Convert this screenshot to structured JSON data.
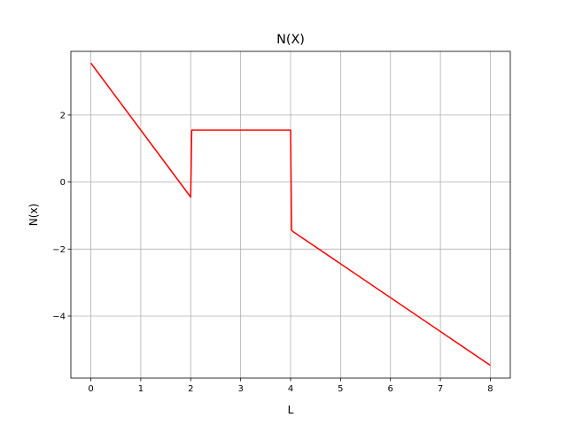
{
  "chart_data": {
    "type": "line",
    "title": "N(X)",
    "xlabel": "L",
    "ylabel": "N(x)",
    "xlim": [
      -0.4,
      8.4
    ],
    "ylim": [
      -5.85,
      3.9
    ],
    "xticks": [
      0,
      1,
      2,
      3,
      4,
      5,
      6,
      7,
      8
    ],
    "yticks": [
      -4,
      -2,
      0,
      2
    ],
    "ytick_labels": [
      "−4",
      "−2",
      "0",
      "2"
    ],
    "grid": true,
    "colors": {
      "line": "#ff0000",
      "grid": "#b0b0b0",
      "axes": "#000000"
    },
    "series": [
      {
        "x": [
          0,
          2.0,
          2.02,
          2.04,
          4.0,
          4.02,
          4.04,
          8
        ],
        "y": [
          3.55,
          -0.45,
          1.55,
          1.55,
          1.55,
          -1.43,
          -1.47,
          -5.47
        ]
      }
    ]
  }
}
